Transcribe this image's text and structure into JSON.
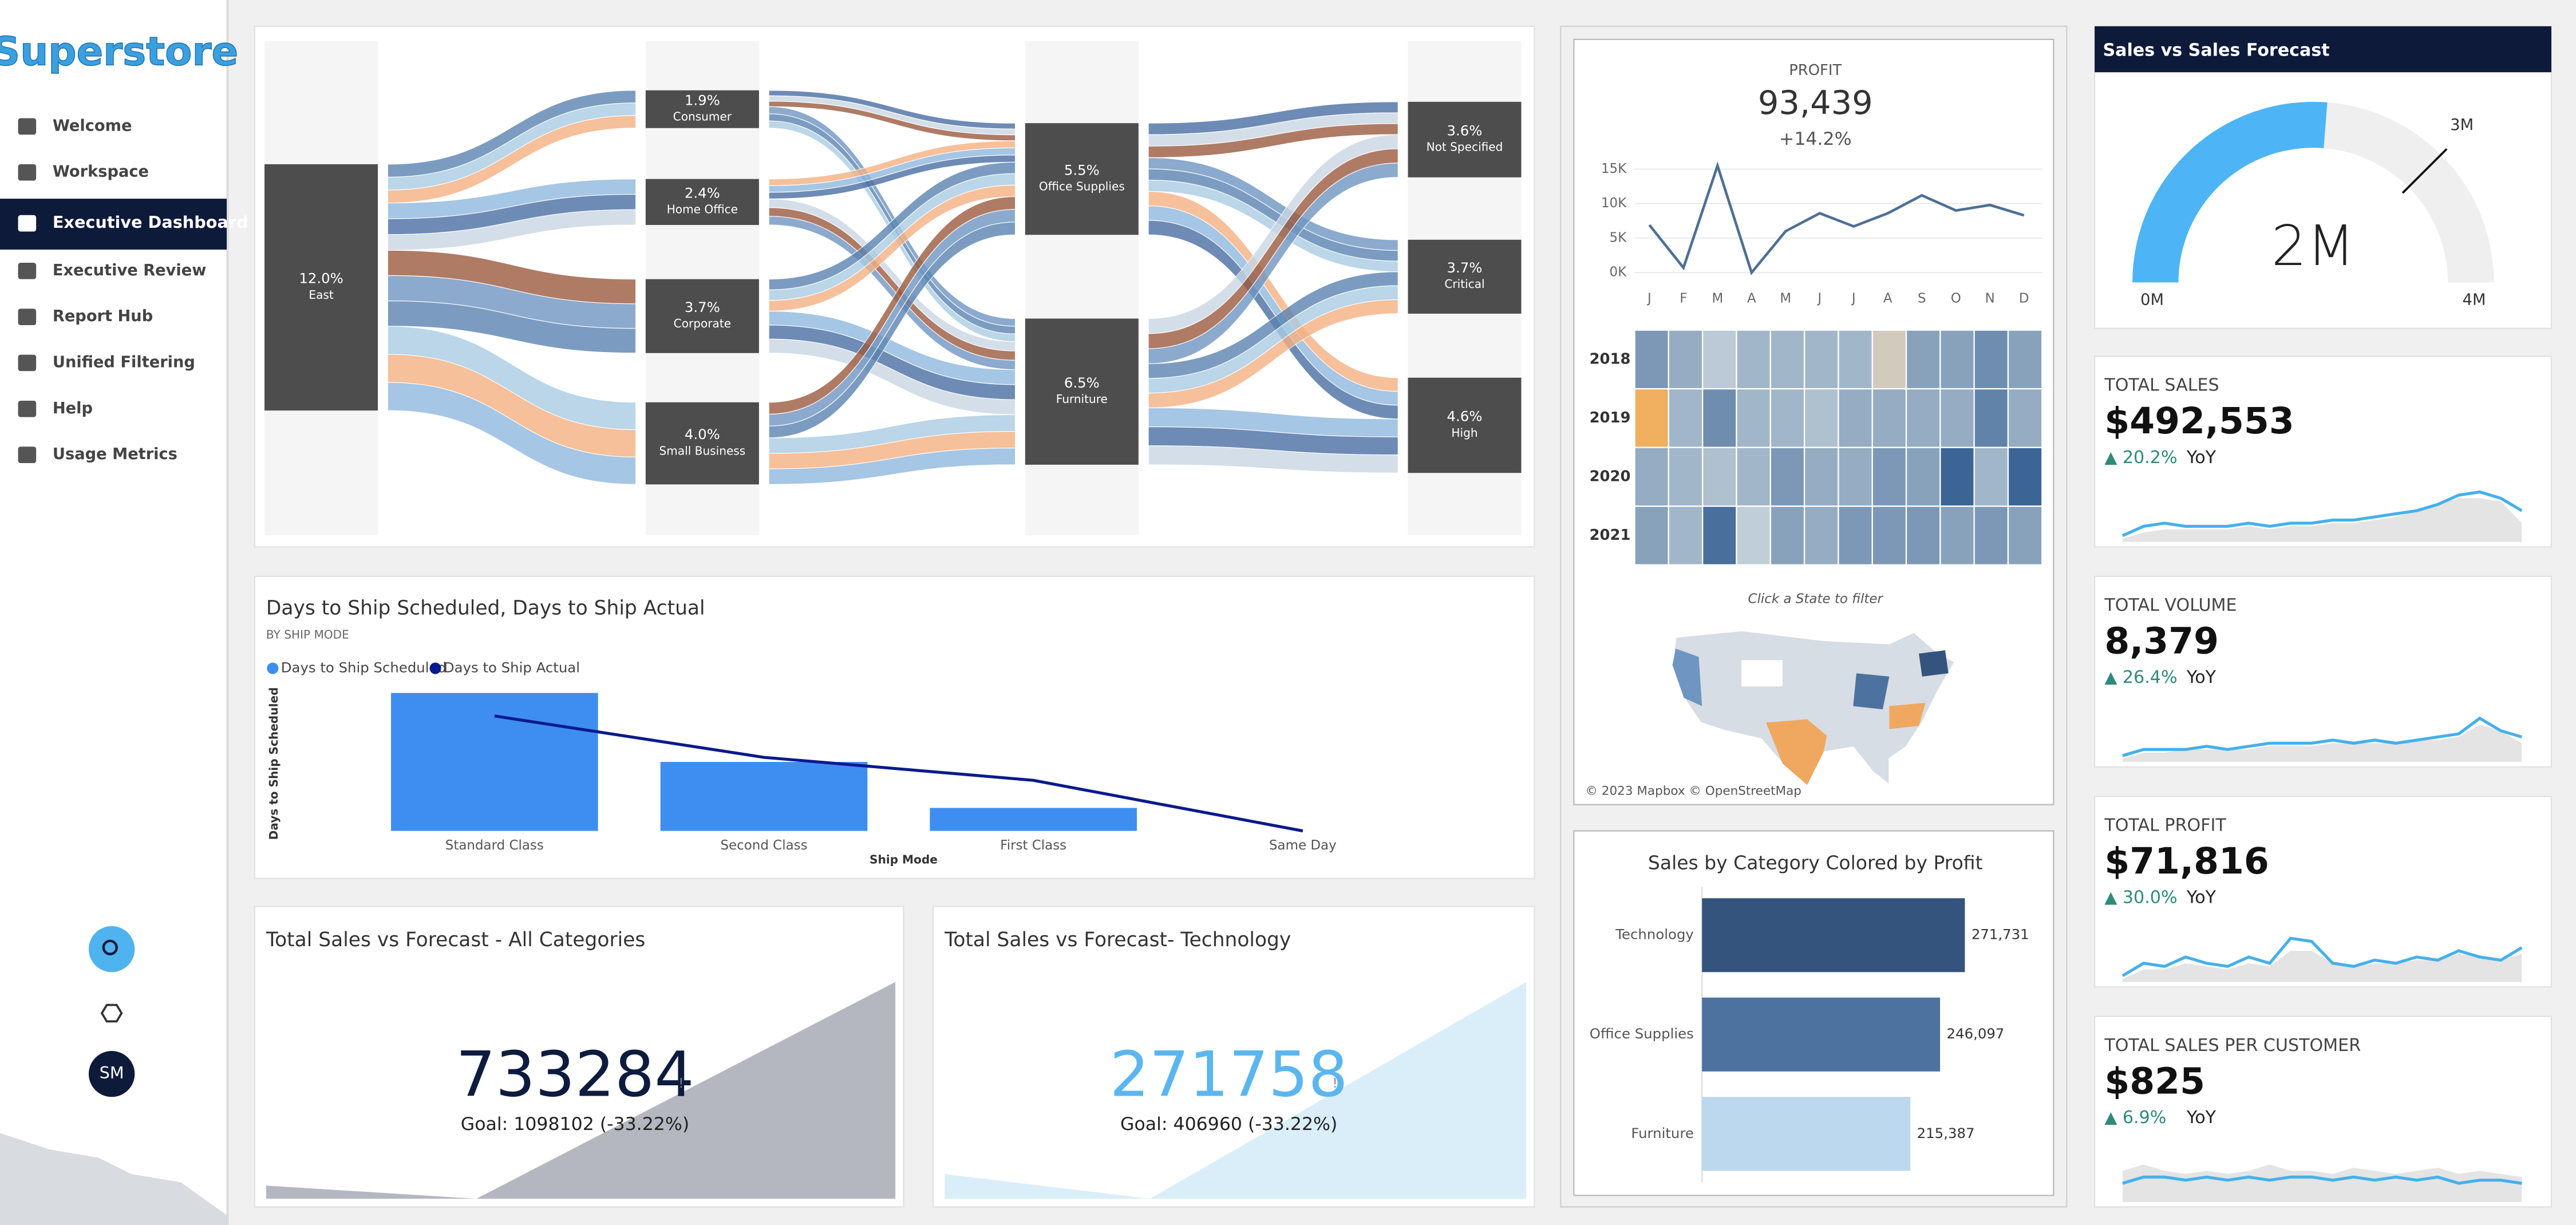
{
  "sidebar": {
    "logo": "Superstore",
    "items": [
      "Welcome",
      "Workspace",
      "Executive Dashboard",
      "Executive Review",
      "Report Hub",
      "Unified Filtering",
      "Help",
      "Usage Metrics"
    ],
    "avatar": "SM"
  },
  "sankey": {
    "columns": [
      [
        {
          "value": "12.0%",
          "label": "East"
        }
      ],
      [
        {
          "value": "1.9%",
          "label": "Consumer"
        },
        {
          "value": "2.4%",
          "label": "Home Office"
        },
        {
          "value": "3.7%",
          "label": "Corporate"
        },
        {
          "value": "4.0%",
          "label": "Small Business"
        }
      ],
      [
        {
          "value": "5.5%",
          "label": "Office Supplies"
        },
        {
          "value": "6.5%",
          "label": "Furniture"
        }
      ],
      [
        {
          "value": "3.6%",
          "label": "Not Specified"
        },
        {
          "value": "3.7%",
          "label": "Critical"
        },
        {
          "value": "4.6%",
          "label": "High"
        }
      ]
    ]
  },
  "ship_chart": {
    "type": "bar",
    "title": "Days to Ship Scheduled, Days to Ship Actual",
    "subtitle": "BY SHIP MODE",
    "y_label": "Days to Ship Scheduled",
    "x_label": "Ship Mode",
    "categories": [
      "Standard Class",
      "Second Class",
      "First Class",
      "Same Day"
    ],
    "ylim": [
      0,
      6
    ],
    "series": [
      {
        "name": "Days to Ship Scheduled",
        "color": "#3d8ef0",
        "values": [
          6,
          3,
          1,
          0
        ]
      },
      {
        "name": "Days to Ship Actual",
        "color": "#0a1a8c",
        "values": [
          5.0,
          3.2,
          2.2,
          0.0
        ]
      }
    ]
  },
  "forecasts": [
    {
      "title": "Total Sales vs Forecast - All Categories",
      "value": 733284,
      "flag": "!",
      "goal": "Goal: 1098102 (-33.22%)",
      "color": "#0d1b3e",
      "fill": "#b5b7c0"
    },
    {
      "title": "Total Sales vs Forecast- Technology",
      "value": 271758,
      "flag": "!",
      "goal": "Goal: 406960 (-33.22%)",
      "color": "#5bb6ef",
      "fill": "#daeefa"
    }
  ],
  "profit": {
    "title": "PROFIT",
    "value": "93,439",
    "change": "+14.2%",
    "chart": {
      "type": "line",
      "categories": [
        "J",
        "F",
        "M",
        "A",
        "M",
        "J",
        "J",
        "A",
        "S",
        "O",
        "N",
        "D"
      ],
      "values": [
        6.9,
        0.7,
        15.5,
        0,
        6.0,
        8.6,
        6.7,
        8.6,
        11.2,
        9.0,
        9.8,
        8.3
      ],
      "ylim": [
        0,
        15
      ],
      "yticks": [
        {
          "value": 0,
          "label": "0K"
        },
        {
          "value": 5,
          "label": "5K"
        },
        {
          "value": 10,
          "label": "10K"
        },
        {
          "value": 15,
          "label": "15K"
        }
      ],
      "color": "#4e6f96",
      "grid": true
    },
    "heatmap": {
      "rows": [
        "2018",
        "2019",
        "2020",
        "2021"
      ],
      "colors": [
        "#f0b060",
        "#c8d4dc",
        "#2f5b8f"
      ],
      "range": [
        -2,
        6
      ],
      "values": [
        [
          3,
          2,
          0.5,
          1.5,
          1.5,
          1.5,
          1.5,
          -0.5,
          2.5,
          2.5,
          3.5,
          2.5
        ],
        [
          -2,
          1.5,
          3.5,
          1.5,
          1.5,
          1,
          2,
          2,
          2,
          2,
          4,
          2
        ],
        [
          2,
          1.5,
          1,
          1.5,
          3,
          2,
          2,
          3,
          2.5,
          5.5,
          1.5,
          5.5
        ],
        [
          2.5,
          1.5,
          5,
          0.3,
          2.5,
          2,
          3,
          3,
          3,
          2.5,
          3,
          2.5
        ]
      ]
    },
    "map_hint": "Click a State to filter",
    "attribution": "© 2023 Mapbox © OpenStreetMap"
  },
  "category_chart": {
    "type": "bar",
    "title": "Sales by Category Colored by Profit",
    "categories": [
      "Technology",
      "Office Supplies",
      "Furniture"
    ],
    "values": [
      271731,
      246097,
      215387
    ],
    "value_labels": [
      "271,731",
      "246,097",
      "215,387"
    ],
    "colors": [
      "#34547e",
      "#4e72a0",
      "#bcd8ee"
    ],
    "xlim": [
      0,
      300000
    ]
  },
  "gauge": {
    "title": "Sales vs Sales Forecast",
    "value": 2.1,
    "value_label": "2M",
    "ylim": [
      0,
      4
    ],
    "ticks": [
      {
        "value": 0,
        "label": "0M"
      },
      {
        "value": 4,
        "label": "4M"
      }
    ],
    "target": {
      "value": 3,
      "label": "3M"
    },
    "color": "#4db5f5",
    "track_color": "#efefef"
  },
  "kpis": [
    {
      "title": "TOTAL SALES",
      "value": "$492,553",
      "arrow": "▲",
      "change": "20.2%",
      "period": "YoY",
      "ylim": [
        0,
        10
      ],
      "trend": [
        1,
        2.5,
        3,
        2.5,
        2.5,
        2.5,
        3,
        2.5,
        3,
        3,
        3.5,
        3.5,
        4,
        4.5,
        5,
        6,
        7.5,
        8,
        7,
        5
      ],
      "baseline": [
        0.5,
        1.5,
        2,
        2,
        2,
        2,
        2.5,
        2,
        2.5,
        2.5,
        3,
        3,
        3.5,
        4,
        5,
        6,
        7,
        7,
        6.5,
        3
      ]
    },
    {
      "title": "TOTAL VOLUME",
      "value": "8,379",
      "arrow": "▲",
      "change": "26.4%",
      "period": "YoY",
      "ylim": [
        0,
        10
      ],
      "trend": [
        1,
        2,
        2,
        2,
        2.5,
        2,
        2.5,
        3,
        3,
        3,
        3.5,
        3,
        3.5,
        3,
        3.5,
        4,
        4.5,
        7,
        5,
        4
      ],
      "baseline": [
        0.5,
        1.5,
        1.5,
        2,
        2,
        2,
        2,
        2.5,
        2.5,
        2.5,
        3,
        3,
        3,
        3,
        3.5,
        3.5,
        4,
        6,
        5,
        3
      ]
    },
    {
      "title": "TOTAL PROFIT",
      "value": "$71,816",
      "arrow": "▲",
      "change": "30.0%",
      "period": "YoY",
      "ylim": [
        0,
        10
      ],
      "trend": [
        1,
        3,
        2.5,
        4,
        3,
        2.5,
        4,
        3,
        7,
        6.5,
        3,
        2.5,
        3.5,
        3,
        4,
        3.5,
        5,
        4,
        3.5,
        5.5
      ],
      "baseline": [
        0.5,
        2,
        2,
        3,
        2.5,
        2,
        3,
        2.5,
        5,
        5,
        3,
        2.5,
        3,
        3,
        3.5,
        3.5,
        4.5,
        4,
        3.5,
        4.5
      ]
    },
    {
      "title": "TOTAL SALES PER CUSTOMER",
      "value": "$825",
      "arrow": "▲",
      "change": "6.9%",
      "period": "YoY",
      "ylim": [
        0,
        10
      ],
      "trend": [
        3,
        4,
        4,
        3.5,
        4,
        3.5,
        4,
        3.5,
        4,
        4,
        3.5,
        4,
        3.5,
        4,
        3.5,
        4,
        3,
        3.5,
        3.5,
        3
      ],
      "baseline": [
        5,
        6,
        5,
        4.5,
        5,
        4.5,
        5,
        6,
        5,
        5,
        4.5,
        5.5,
        5,
        4.5,
        5,
        5.5,
        4.5,
        5,
        4.5,
        4
      ]
    }
  ]
}
